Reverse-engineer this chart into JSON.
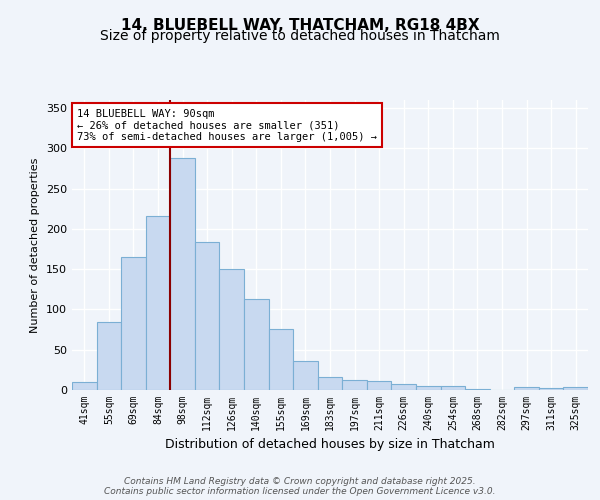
{
  "title1": "14, BLUEBELL WAY, THATCHAM, RG18 4BX",
  "title2": "Size of property relative to detached houses in Thatcham",
  "xlabel": "Distribution of detached houses by size in Thatcham",
  "ylabel": "Number of detached properties",
  "categories": [
    "41sqm",
    "55sqm",
    "69sqm",
    "84sqm",
    "98sqm",
    "112sqm",
    "126sqm",
    "140sqm",
    "155sqm",
    "169sqm",
    "183sqm",
    "197sqm",
    "211sqm",
    "226sqm",
    "240sqm",
    "254sqm",
    "268sqm",
    "282sqm",
    "297sqm",
    "311sqm",
    "325sqm"
  ],
  "values": [
    10,
    84,
    165,
    216,
    288,
    184,
    150,
    113,
    76,
    36,
    16,
    13,
    11,
    8,
    5,
    5,
    1,
    0,
    4,
    3,
    4
  ],
  "bar_color": "#c8d9f0",
  "bar_edge_color": "#7bafd4",
  "vline_x": 3.5,
  "vline_color": "#8b0000",
  "annotation_title": "14 BLUEBELL WAY: 90sqm",
  "annotation_line2": "← 26% of detached houses are smaller (351)",
  "annotation_line3": "73% of semi-detached houses are larger (1,005) →",
  "annotation_box_color": "#ffffff",
  "annotation_border_color": "#cc0000",
  "ylim": [
    0,
    360
  ],
  "yticks": [
    0,
    50,
    100,
    150,
    200,
    250,
    300,
    350
  ],
  "footer1": "Contains HM Land Registry data © Crown copyright and database right 2025.",
  "footer2": "Contains public sector information licensed under the Open Government Licence v3.0.",
  "bg_color": "#f0f4fa",
  "title_fontsize": 11,
  "subtitle_fontsize": 10
}
